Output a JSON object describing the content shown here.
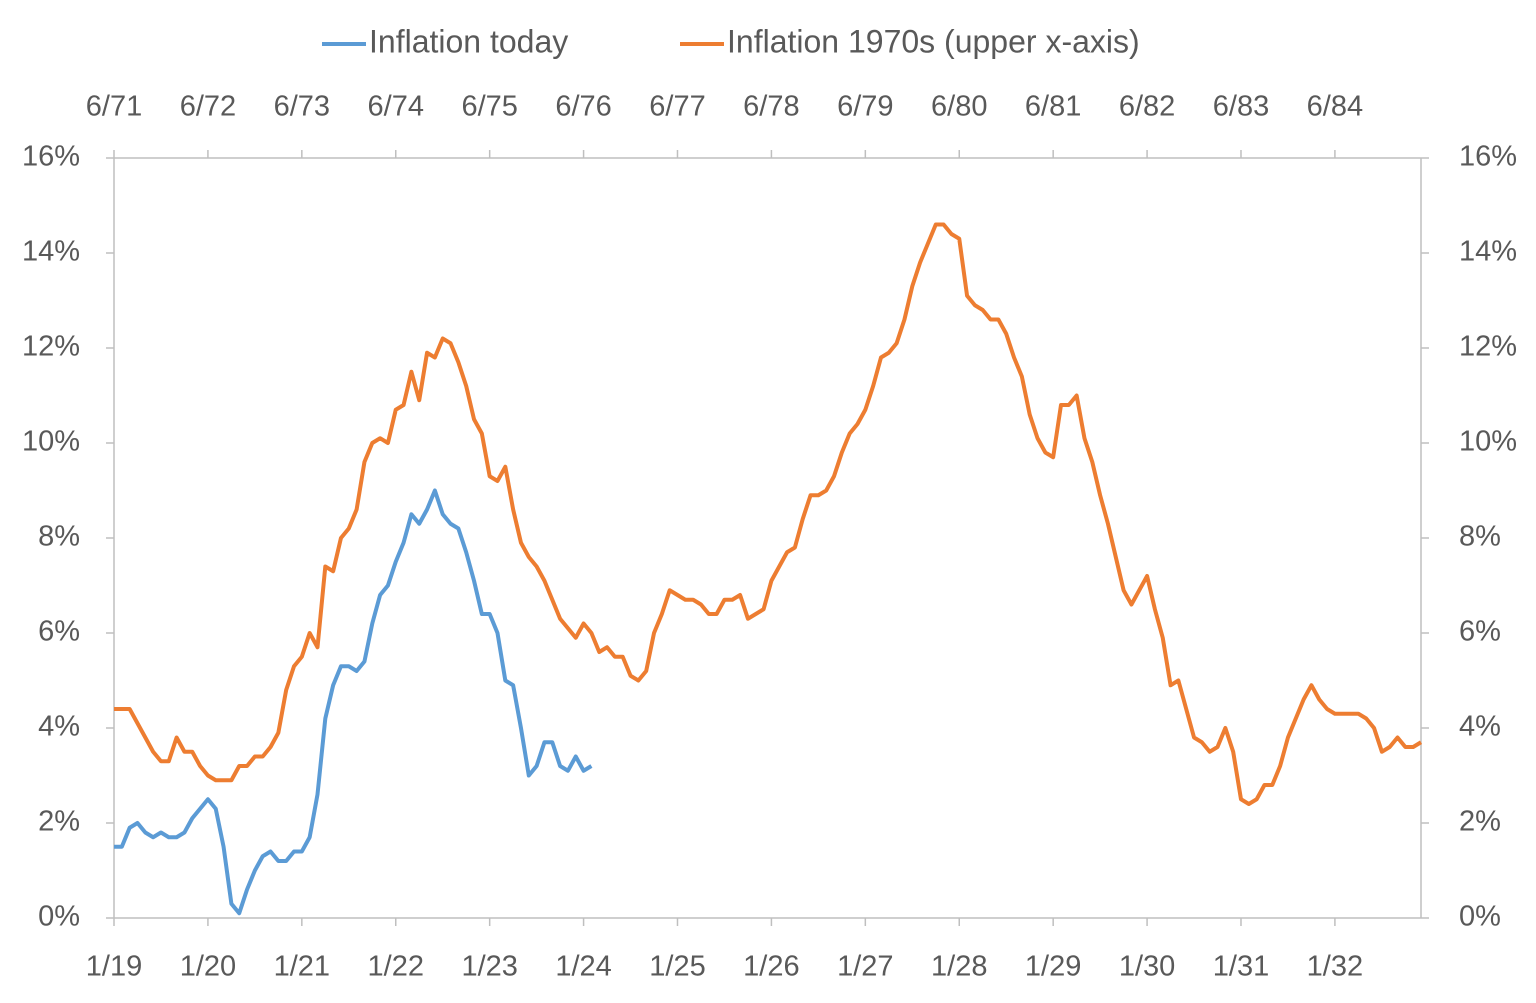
{
  "chart_data": {
    "type": "line",
    "ylim": [
      0,
      16
    ],
    "yticks": [
      {
        "value": 0,
        "label": "0%"
      },
      {
        "value": 2,
        "label": "2%"
      },
      {
        "value": 4,
        "label": "4%"
      },
      {
        "value": 6,
        "label": "6%"
      },
      {
        "value": 8,
        "label": "8%"
      },
      {
        "value": 10,
        "label": "10%"
      },
      {
        "value": 12,
        "label": "12%"
      },
      {
        "value": 14,
        "label": "14%"
      },
      {
        "value": 16,
        "label": "16%"
      }
    ],
    "xlim": [
      "2019-01",
      "2032-12"
    ],
    "xticks": [
      {
        "value": "2019-01",
        "label": "1/19"
      },
      {
        "value": "2020-01",
        "label": "1/20"
      },
      {
        "value": "2021-01",
        "label": "1/21"
      },
      {
        "value": "2022-01",
        "label": "1/22"
      },
      {
        "value": "2023-01",
        "label": "1/23"
      },
      {
        "value": "2024-01",
        "label": "1/24"
      },
      {
        "value": "2025-01",
        "label": "1/25"
      },
      {
        "value": "2026-01",
        "label": "1/26"
      },
      {
        "value": "2027-01",
        "label": "1/27"
      },
      {
        "value": "2028-01",
        "label": "1/28"
      },
      {
        "value": "2029-01",
        "label": "1/29"
      },
      {
        "value": "2030-01",
        "label": "1/30"
      },
      {
        "value": "2031-01",
        "label": "1/31"
      },
      {
        "value": "2032-01",
        "label": "1/32"
      }
    ],
    "x2lim": [
      "1971-06",
      "1985-05"
    ],
    "x2ticks": [
      {
        "value": "1971-06",
        "label": "6/71"
      },
      {
        "value": "1972-06",
        "label": "6/72"
      },
      {
        "value": "1973-06",
        "label": "6/73"
      },
      {
        "value": "1974-06",
        "label": "6/74"
      },
      {
        "value": "1975-06",
        "label": "6/75"
      },
      {
        "value": "1976-06",
        "label": "6/76"
      },
      {
        "value": "1977-06",
        "label": "6/77"
      },
      {
        "value": "1978-06",
        "label": "6/78"
      },
      {
        "value": "1979-06",
        "label": "6/79"
      },
      {
        "value": "1980-06",
        "label": "6/80"
      },
      {
        "value": "1981-06",
        "label": "6/81"
      },
      {
        "value": "1982-06",
        "label": "6/82"
      },
      {
        "value": "1983-06",
        "label": "6/83"
      },
      {
        "value": "1984-06",
        "label": "6/84"
      }
    ],
    "grid": false,
    "legend": "top",
    "series": [
      {
        "name": "Inflation today",
        "color": "#5b9bd5",
        "xaxis": "x",
        "x": [
          "2019-01",
          "2019-02",
          "2019-03",
          "2019-04",
          "2019-05",
          "2019-06",
          "2019-07",
          "2019-08",
          "2019-09",
          "2019-10",
          "2019-11",
          "2019-12",
          "2020-01",
          "2020-02",
          "2020-03",
          "2020-04",
          "2020-05",
          "2020-06",
          "2020-07",
          "2020-08",
          "2020-09",
          "2020-10",
          "2020-11",
          "2020-12",
          "2021-01",
          "2021-02",
          "2021-03",
          "2021-04",
          "2021-05",
          "2021-06",
          "2021-07",
          "2021-08",
          "2021-09",
          "2021-10",
          "2021-11",
          "2021-12",
          "2022-01",
          "2022-02",
          "2022-03",
          "2022-04",
          "2022-05",
          "2022-06",
          "2022-07",
          "2022-08",
          "2022-09",
          "2022-10",
          "2022-11",
          "2022-12",
          "2023-01",
          "2023-02",
          "2023-03",
          "2023-04",
          "2023-05",
          "2023-06",
          "2023-07",
          "2023-08",
          "2023-09",
          "2023-10",
          "2023-11",
          "2023-12",
          "2024-01",
          "2024-02"
        ],
        "values": [
          1.5,
          1.5,
          1.9,
          2.0,
          1.8,
          1.7,
          1.8,
          1.7,
          1.7,
          1.8,
          2.1,
          2.3,
          2.5,
          2.3,
          1.5,
          0.3,
          0.1,
          0.6,
          1.0,
          1.3,
          1.4,
          1.2,
          1.2,
          1.4,
          1.4,
          1.7,
          2.6,
          4.2,
          4.9,
          5.3,
          5.3,
          5.2,
          5.4,
          6.2,
          6.8,
          7.0,
          7.5,
          7.9,
          8.5,
          8.3,
          8.6,
          9.0,
          8.5,
          8.3,
          8.2,
          7.7,
          7.1,
          6.4,
          6.4,
          6.0,
          5.0,
          4.9,
          4.0,
          3.0,
          3.2,
          3.7,
          3.7,
          3.2,
          3.1,
          3.4,
          3.1,
          3.2
        ]
      },
      {
        "name": "Inflation 1970s (upper x-axis)",
        "color": "#ed7d31",
        "xaxis": "x2",
        "x": [
          "1971-06",
          "1971-07",
          "1971-08",
          "1971-09",
          "1971-10",
          "1971-11",
          "1971-12",
          "1972-01",
          "1972-02",
          "1972-03",
          "1972-04",
          "1972-05",
          "1972-06",
          "1972-07",
          "1972-08",
          "1972-09",
          "1972-10",
          "1972-11",
          "1972-12",
          "1973-01",
          "1973-02",
          "1973-03",
          "1973-04",
          "1973-05",
          "1973-06",
          "1973-07",
          "1973-08",
          "1973-09",
          "1973-10",
          "1973-11",
          "1973-12",
          "1974-01",
          "1974-02",
          "1974-03",
          "1974-04",
          "1974-05",
          "1974-06",
          "1974-07",
          "1974-08",
          "1974-09",
          "1974-10",
          "1974-11",
          "1974-12",
          "1975-01",
          "1975-02",
          "1975-03",
          "1975-04",
          "1975-05",
          "1975-06",
          "1975-07",
          "1975-08",
          "1975-09",
          "1975-10",
          "1975-11",
          "1975-12",
          "1976-01",
          "1976-02",
          "1976-03",
          "1976-04",
          "1976-05",
          "1976-06",
          "1976-07",
          "1976-08",
          "1976-09",
          "1976-10",
          "1976-11",
          "1976-12",
          "1977-01",
          "1977-02",
          "1977-03",
          "1977-04",
          "1977-05",
          "1977-06",
          "1977-07",
          "1977-08",
          "1977-09",
          "1977-10",
          "1977-11",
          "1977-12",
          "1978-01",
          "1978-02",
          "1978-03",
          "1978-04",
          "1978-05",
          "1978-06",
          "1978-07",
          "1978-08",
          "1978-09",
          "1978-10",
          "1978-11",
          "1978-12",
          "1979-01",
          "1979-02",
          "1979-03",
          "1979-04",
          "1979-05",
          "1979-06",
          "1979-07",
          "1979-08",
          "1979-09",
          "1979-10",
          "1979-11",
          "1979-12",
          "1980-01",
          "1980-02",
          "1980-03",
          "1980-04",
          "1980-05",
          "1980-06",
          "1980-07",
          "1980-08",
          "1980-09",
          "1980-10",
          "1980-11",
          "1980-12",
          "1981-01",
          "1981-02",
          "1981-03",
          "1981-04",
          "1981-05",
          "1981-06",
          "1981-07",
          "1981-08",
          "1981-09",
          "1981-10",
          "1981-11",
          "1981-12",
          "1982-01",
          "1982-02",
          "1982-03",
          "1982-04",
          "1982-05",
          "1982-06",
          "1982-07",
          "1982-08",
          "1982-09",
          "1982-10",
          "1982-11",
          "1982-12",
          "1983-01",
          "1983-02",
          "1983-03",
          "1983-04",
          "1983-05",
          "1983-06",
          "1983-07",
          "1983-08",
          "1983-09",
          "1983-10",
          "1983-11",
          "1983-12",
          "1984-01",
          "1984-02",
          "1984-03",
          "1984-04",
          "1984-05",
          "1984-06",
          "1984-07",
          "1984-08",
          "1984-09",
          "1984-10",
          "1984-11",
          "1984-12",
          "1985-01",
          "1985-02",
          "1985-03",
          "1985-04",
          "1985-05"
        ],
        "values": [
          4.4,
          4.4,
          4.4,
          4.1,
          3.8,
          3.5,
          3.3,
          3.3,
          3.8,
          3.5,
          3.5,
          3.2,
          3.0,
          2.9,
          2.9,
          2.9,
          3.2,
          3.2,
          3.4,
          3.4,
          3.6,
          3.9,
          4.8,
          5.3,
          5.5,
          6.0,
          5.7,
          7.4,
          7.3,
          8.0,
          8.2,
          8.6,
          9.6,
          10.0,
          10.1,
          10.0,
          10.7,
          10.8,
          11.5,
          10.9,
          11.9,
          11.8,
          12.2,
          12.1,
          11.7,
          11.2,
          10.5,
          10.2,
          9.3,
          9.2,
          9.5,
          8.6,
          7.9,
          7.6,
          7.4,
          7.1,
          6.7,
          6.3,
          6.1,
          5.9,
          6.2,
          6.0,
          5.6,
          5.7,
          5.5,
          5.5,
          5.1,
          5.0,
          5.2,
          6.0,
          6.4,
          6.9,
          6.8,
          6.7,
          6.7,
          6.6,
          6.4,
          6.4,
          6.7,
          6.7,
          6.8,
          6.3,
          6.4,
          6.5,
          7.1,
          7.4,
          7.7,
          7.8,
          8.4,
          8.9,
          8.9,
          9.0,
          9.3,
          9.8,
          10.2,
          10.4,
          10.7,
          11.2,
          11.8,
          11.9,
          12.1,
          12.6,
          13.3,
          13.8,
          14.2,
          14.6,
          14.6,
          14.4,
          14.3,
          13.1,
          12.9,
          12.8,
          12.6,
          12.6,
          12.3,
          11.8,
          11.4,
          10.6,
          10.1,
          9.8,
          9.7,
          10.8,
          10.8,
          11.0,
          10.1,
          9.6,
          8.9,
          8.3,
          7.6,
          6.9,
          6.6,
          6.9,
          7.2,
          6.5,
          5.9,
          4.9,
          5.0,
          4.4,
          3.8,
          3.7,
          3.5,
          3.6,
          4.0,
          3.5,
          2.5,
          2.4,
          2.5,
          2.8,
          2.8,
          3.2,
          3.8,
          4.2,
          4.6,
          4.9,
          4.6,
          4.4,
          4.3,
          4.3,
          4.3,
          4.3,
          4.2,
          4.0,
          3.5,
          3.6,
          3.8,
          3.6,
          3.6,
          3.7
        ]
      }
    ]
  }
}
